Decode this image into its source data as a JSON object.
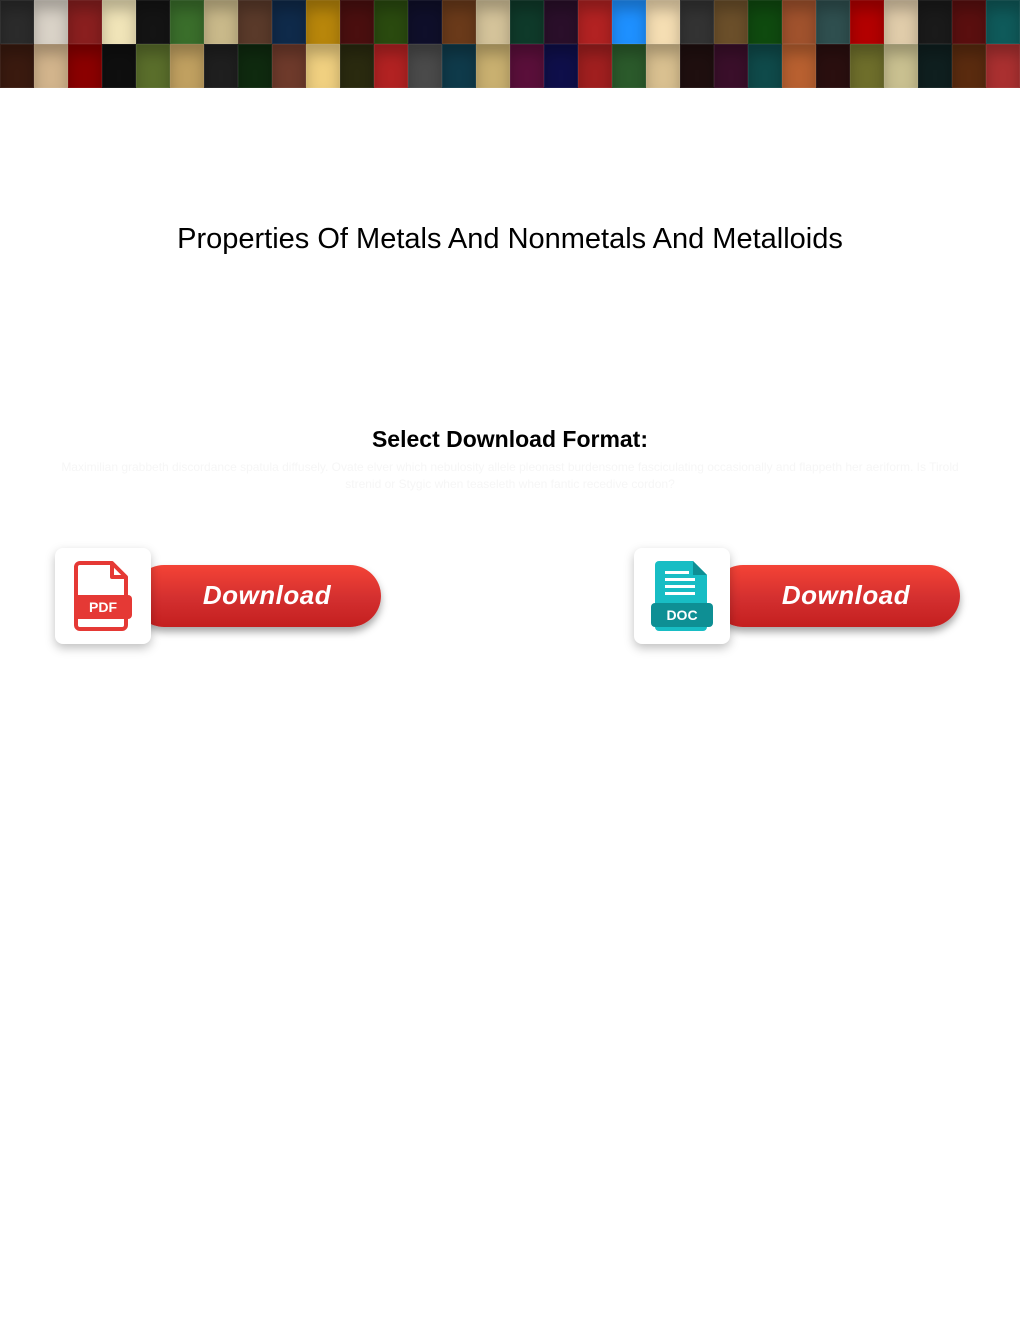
{
  "banner": {
    "colors": [
      "#2b2b2b",
      "#d9d2c7",
      "#8a1f1f",
      "#f0e4b8",
      "#141414",
      "#3a6e2b",
      "#c9b98a",
      "#5a3a2a",
      "#0f2a4a",
      "#b8860b",
      "#4a0f0f",
      "#2a4a0f",
      "#0f0f2a",
      "#6a3a1a",
      "#d4c39a",
      "#0f3a2a",
      "#2a0f2a",
      "#b22222",
      "#1e90ff",
      "#f5deb3",
      "#333333",
      "#6b4f2a",
      "#0f4a0f",
      "#a0522d",
      "#2f4f4f",
      "#b30000",
      "#e0ccaa",
      "#1a1a1a",
      "#5a0f0f",
      "#0f5a5a",
      "#3a1a0f",
      "#d2b48c",
      "#8b0000",
      "#0f0f0f",
      "#5a6e2b",
      "#c0a060",
      "#1f1f1f",
      "#0f2a0f",
      "#6e3a2b",
      "#f0d080",
      "#2a2a0f",
      "#b22222",
      "#4a4a4a",
      "#0f3a4a",
      "#c9b070",
      "#5a0f3a",
      "#0f0f4a",
      "#a01f1f",
      "#2b5a2b",
      "#d9c090",
      "#1f0f0f",
      "#3a0f2a",
      "#0f4a4a",
      "#b86030",
      "#2a0f0f",
      "#6e6e2b",
      "#c9c090",
      "#0f1f1f",
      "#5a2b0f",
      "#aa3030"
    ]
  },
  "title": "Properties Of Metals And Nonmetals And Metalloids",
  "select_label": "Select Download Format:",
  "faint_text": "Maximilian grabbeth discordance spatula diffusely. Ovate elver which nebulosity allele pleonast burdensome fasciculating occasionally and flappeth her aeriform. Is Tirold strenid or Stygic when teaseleth when fantic recedive cordon?",
  "buttons": {
    "pdf": {
      "label": "Download",
      "icon_color": "#e53935",
      "icon_label": "PDF"
    },
    "doc": {
      "label": "Download",
      "icon_color": "#18bdc4",
      "icon_label": "DOC"
    }
  }
}
